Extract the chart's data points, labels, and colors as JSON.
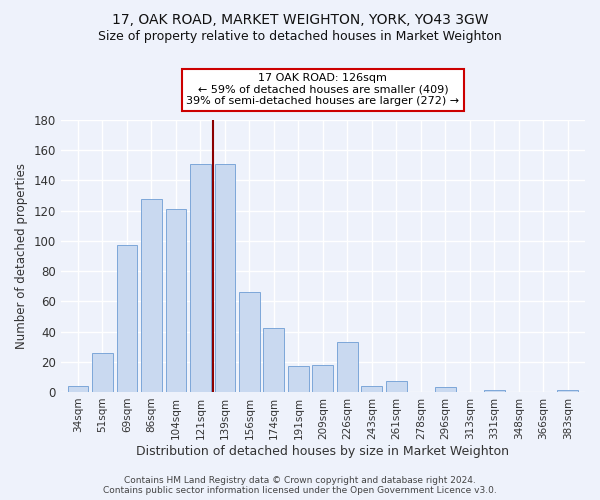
{
  "title": "17, OAK ROAD, MARKET WEIGHTON, YORK, YO43 3GW",
  "subtitle": "Size of property relative to detached houses in Market Weighton",
  "xlabel": "Distribution of detached houses by size in Market Weighton",
  "ylabel": "Number of detached properties",
  "bar_labels": [
    "34sqm",
    "51sqm",
    "69sqm",
    "86sqm",
    "104sqm",
    "121sqm",
    "139sqm",
    "156sqm",
    "174sqm",
    "191sqm",
    "209sqm",
    "226sqm",
    "243sqm",
    "261sqm",
    "278sqm",
    "296sqm",
    "313sqm",
    "331sqm",
    "348sqm",
    "366sqm",
    "383sqm"
  ],
  "bar_values": [
    4,
    26,
    97,
    128,
    121,
    151,
    151,
    66,
    42,
    17,
    18,
    33,
    4,
    7,
    0,
    3,
    0,
    1,
    0,
    0,
    1
  ],
  "bar_color": "#c9d9f0",
  "bar_edge_color": "#7da7d9",
  "ylim": [
    0,
    180
  ],
  "yticks": [
    0,
    20,
    40,
    60,
    80,
    100,
    120,
    140,
    160,
    180
  ],
  "vline_x": 5.5,
  "vline_color": "#8b0000",
  "annotation_title": "17 OAK ROAD: 126sqm",
  "annotation_line1": "← 59% of detached houses are smaller (409)",
  "annotation_line2": "39% of semi-detached houses are larger (272) →",
  "annotation_box_color": "#ffffff",
  "annotation_box_edge_color": "#cc0000",
  "footer1": "Contains HM Land Registry data © Crown copyright and database right 2024.",
  "footer2": "Contains public sector information licensed under the Open Government Licence v3.0.",
  "background_color": "#eef2fb",
  "plot_bg_color": "#eef2fb",
  "grid_color": "#ffffff",
  "title_fontsize": 10,
  "subtitle_fontsize": 9
}
